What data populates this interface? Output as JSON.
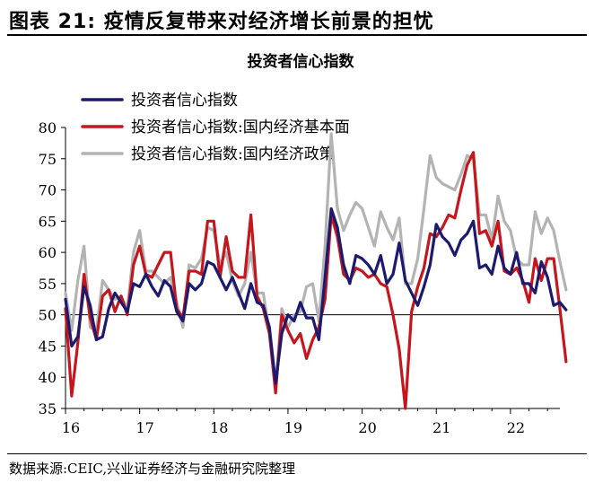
{
  "figure_title": "图表 21:  疫情反复带来对经济增长前景的担忧",
  "source_note": "数据来源:CEIC,兴业证券经济与金融研究院整理",
  "colors": {
    "series_navy": "#1c1a6e",
    "series_red": "#c4161c",
    "series_gray": "#b3b3b3",
    "axis": "#000000"
  },
  "chart_data": {
    "type": "line",
    "title": "投资者信心指数",
    "xlabel": "",
    "ylabel": "",
    "ylim": [
      35,
      80
    ],
    "yticks": [
      35,
      40,
      45,
      50,
      55,
      60,
      65,
      70,
      75,
      80
    ],
    "xlim": [
      2016,
      2022.667
    ],
    "xticks": [
      {
        "label": "16",
        "x": 2016
      },
      {
        "label": "17",
        "x": 2017
      },
      {
        "label": "18",
        "x": 2018
      },
      {
        "label": "19",
        "x": 2019
      },
      {
        "label": "20",
        "x": 2020
      },
      {
        "label": "21",
        "x": 2021
      },
      {
        "label": "22",
        "x": 2022
      }
    ],
    "reference_line": 50,
    "grid": false,
    "legend_position": "top-left",
    "x_start": "2016-01",
    "x_step": "monthly",
    "series": [
      {
        "name": "投资者信心指数",
        "color": "#1c1a6e",
        "values": [
          52.5,
          45.0,
          46.5,
          54.5,
          51.5,
          46.0,
          46.5,
          51.0,
          53.5,
          52.0,
          50.5,
          55.0,
          54.5,
          56.5,
          54.5,
          53.0,
          55.5,
          54.5,
          50.5,
          49.0,
          55.0,
          54.0,
          55.0,
          58.5,
          58.0,
          56.0,
          54.0,
          56.0,
          53.5,
          51.0,
          55.0,
          52.0,
          51.5,
          48.0,
          39.0,
          47.0,
          50.0,
          49.0,
          52.0,
          49.5,
          49.5,
          46.0,
          56.0,
          67.0,
          64.0,
          58.0,
          55.0,
          59.5,
          59.0,
          58.0,
          56.5,
          59.5,
          55.0,
          56.5,
          61.5,
          55.5,
          53.5,
          51.5,
          54.5,
          58.0,
          64.5,
          62.5,
          61.5,
          59.5,
          62.0,
          63.0,
          65.0,
          57.5,
          58.0,
          56.5,
          61.0,
          57.5,
          56.5,
          60.0,
          55.0,
          55.0,
          53.5,
          58.5,
          56.0,
          51.5,
          52.0,
          50.8
        ]
      },
      {
        "name": "投资者信心指数:国内经济基本面",
        "color": "#c4161c",
        "values": [
          51.0,
          37.0,
          45.5,
          56.5,
          49.5,
          46.0,
          53.0,
          54.0,
          50.5,
          53.0,
          50.0,
          58.0,
          61.0,
          56.5,
          56.0,
          58.0,
          60.0,
          60.0,
          51.0,
          49.5,
          57.0,
          57.0,
          56.5,
          65.0,
          65.0,
          56.0,
          62.5,
          57.0,
          56.0,
          56.0,
          66.0,
          53.0,
          51.0,
          47.0,
          37.5,
          50.0,
          47.5,
          45.5,
          47.0,
          43.0,
          46.0,
          48.0,
          52.5,
          66.0,
          62.5,
          56.5,
          55.5,
          57.5,
          57.0,
          56.0,
          56.5,
          55.0,
          54.5,
          50.0,
          44.5,
          35.0,
          50.5,
          54.5,
          57.5,
          63.0,
          62.5,
          64.0,
          66.0,
          65.5,
          70.0,
          74.0,
          76.0,
          63.0,
          63.5,
          61.0,
          65.0,
          57.0,
          56.5,
          57.5,
          55.5,
          52.0,
          59.0,
          55.5,
          59.0,
          59.0,
          51.0,
          42.5
        ]
      },
      {
        "name": "投资者信心指数:国内经济政策",
        "color": "#b3b3b3",
        "values": [
          53.5,
          47.5,
          55.5,
          61.0,
          48.0,
          47.5,
          55.5,
          54.0,
          52.5,
          53.0,
          51.0,
          60.0,
          63.5,
          57.0,
          57.0,
          56.0,
          55.0,
          56.0,
          52.0,
          48.0,
          58.0,
          57.5,
          59.0,
          64.0,
          63.5,
          58.0,
          60.0,
          55.5,
          53.0,
          55.0,
          60.0,
          53.5,
          53.5,
          47.0,
          38.5,
          51.0,
          48.0,
          50.0,
          50.5,
          54.5,
          55.0,
          49.0,
          61.0,
          79.0,
          67.0,
          63.5,
          66.0,
          68.0,
          67.0,
          64.0,
          61.0,
          66.5,
          64.0,
          62.0,
          65.5,
          55.0,
          55.0,
          59.0,
          67.0,
          75.5,
          72.0,
          71.0,
          70.5,
          70.0,
          72.5,
          75.5,
          75.0,
          66.0,
          66.0,
          62.0,
          69.0,
          65.0,
          63.5,
          59.0,
          58.0,
          58.0,
          66.5,
          63.0,
          65.5,
          63.5,
          58.5,
          54.0
        ]
      }
    ]
  }
}
